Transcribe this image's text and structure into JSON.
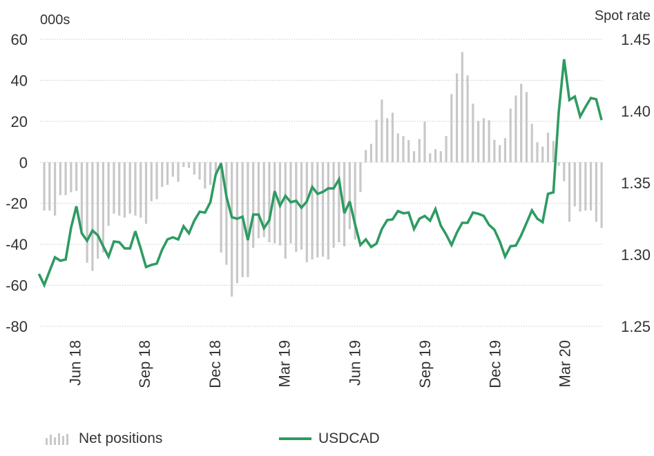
{
  "chart_data": {
    "type": "bar+line",
    "left_axis": {
      "title": "000s",
      "ticks": [
        60,
        40,
        20,
        0,
        -20,
        -40,
        -60,
        -80
      ],
      "range": [
        -80,
        60
      ]
    },
    "right_axis": {
      "title": "Spot rate",
      "ticks": [
        "1.45",
        "1.40",
        "1.35",
        "1.30",
        "1.25"
      ],
      "range": [
        1.25,
        1.45
      ]
    },
    "x_axis": {
      "unit": "weeks",
      "range": [
        0,
        105
      ],
      "ticks": [
        {
          "label": "Jun 18",
          "at": 6.7
        },
        {
          "label": "Sep 18",
          "at": 19.7
        },
        {
          "label": "Dec 18",
          "at": 32.8
        },
        {
          "label": "Mar 19",
          "at": 45.8
        },
        {
          "label": "Jun 19",
          "at": 58.9
        },
        {
          "label": "Sep 19",
          "at": 72.0
        },
        {
          "label": "Dec 19",
          "at": 85.1
        },
        {
          "label": "Mar 20",
          "at": 98.1
        }
      ]
    },
    "grid": true,
    "legend_placement": "bottom",
    "series": [
      {
        "name": "Net positions",
        "kind": "bar",
        "axis": "left",
        "color": "#c8c8c8",
        "start_week": 1,
        "values": [
          -23.5,
          -23.5,
          -26,
          -16,
          -16,
          -14.6,
          -14,
          -33,
          -49,
          -53,
          -47,
          -44,
          -31,
          -25,
          -26,
          -27,
          -25,
          -26,
          -27,
          -30,
          -19,
          -18,
          -12,
          -11,
          -7,
          -9.5,
          -2.3,
          -2.7,
          -6,
          -8.4,
          -12.8,
          -11,
          -5.7,
          -44,
          -50,
          -65.5,
          -59,
          -56,
          -56,
          -41.7,
          -37,
          -36.5,
          -39,
          -39.5,
          -40.6,
          -47,
          -39.5,
          -43.7,
          -42.6,
          -48.7,
          -47.4,
          -46.4,
          -46,
          -47.4,
          -41.7,
          -39,
          -41,
          -32.6,
          -37.7,
          -14.5,
          6,
          9,
          20.8,
          30.6,
          21.5,
          24.2,
          14.1,
          12.8,
          10.8,
          5.4,
          11.4,
          19.8,
          4.4,
          6.4,
          5.4,
          12.8,
          33.3,
          43.4,
          53.8,
          42.4,
          28.6,
          20.2,
          21.5,
          20.5,
          11,
          8.4,
          11.8,
          26.2,
          32.6,
          38.3,
          34.3,
          18.8,
          9.8,
          7.7,
          14.5,
          10.4,
          -1.7,
          -9.2,
          -29,
          -21.5,
          -24,
          -23.5,
          -23.5,
          -29,
          -32
        ]
      },
      {
        "name": "USDCAD",
        "kind": "line",
        "axis": "right",
        "color": "#2e9b62",
        "start_week": 0,
        "values": [
          1.2865,
          1.2788,
          1.2885,
          1.2981,
          1.2957,
          1.2966,
          1.3187,
          1.3336,
          1.3148,
          1.3096,
          1.3168,
          1.3134,
          1.3058,
          1.2985,
          1.3091,
          1.3086,
          1.3043,
          1.3043,
          1.3163,
          1.3043,
          1.2913,
          1.2928,
          1.2937,
          1.3034,
          1.3106,
          1.312,
          1.3106,
          1.3197,
          1.3148,
          1.3236,
          1.3298,
          1.3293,
          1.3365,
          1.3558,
          1.3635,
          1.3404,
          1.326,
          1.325,
          1.3264,
          1.3101,
          1.3279,
          1.3279,
          1.3183,
          1.324,
          1.3442,
          1.3341,
          1.3409,
          1.3365,
          1.3375,
          1.3327,
          1.337,
          1.3471,
          1.3423,
          1.3437,
          1.3461,
          1.3461,
          1.3524,
          1.3288,
          1.337,
          1.3211,
          1.3067,
          1.3106,
          1.3053,
          1.3077,
          1.3178,
          1.324,
          1.3245,
          1.3303,
          1.3288,
          1.3293,
          1.3178,
          1.325,
          1.3269,
          1.3236,
          1.3317,
          1.3202,
          1.3139,
          1.3067,
          1.3154,
          1.3221,
          1.3221,
          1.3293,
          1.3284,
          1.3269,
          1.3207,
          1.3173,
          1.3091,
          1.2985,
          1.3058,
          1.3062,
          1.3134,
          1.3221,
          1.3308,
          1.325,
          1.3226,
          1.3423,
          1.3433,
          1.399,
          1.4361,
          1.4077,
          1.4101,
          1.3962,
          1.4029,
          1.4091,
          1.4082,
          1.3937
        ]
      }
    ]
  },
  "legend": {
    "bars_label": "Net positions",
    "line_label": "USDCAD"
  }
}
